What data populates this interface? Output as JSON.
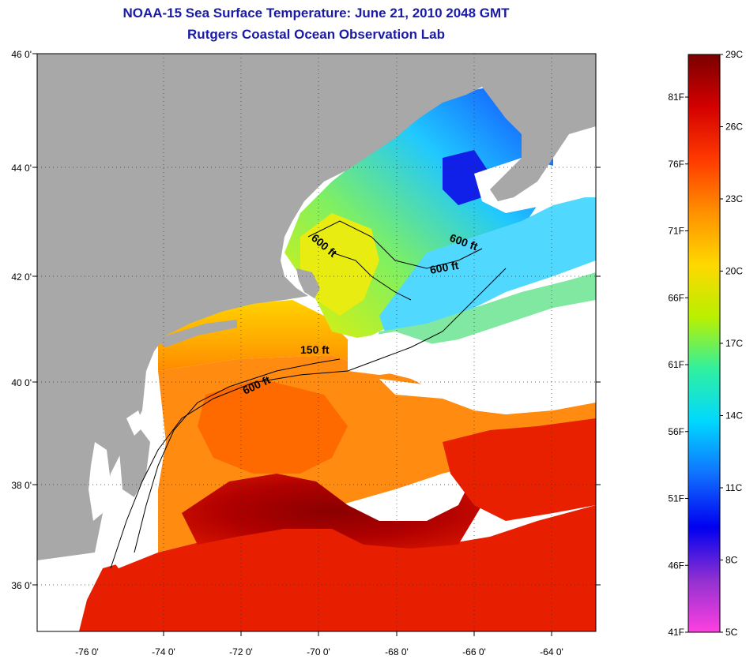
{
  "title": "NOAA-15 Sea Surface Temperature:  June 21, 2010 2048 GMT",
  "subtitle": "Rutgers Coastal Ocean Observation Lab",
  "axes": {
    "lat_labels": [
      "46 0'",
      "44 0'",
      "42 0'",
      "40 0'",
      "38 0'",
      "36 0'"
    ],
    "lon_labels": [
      "-76 0'",
      "-74 0'",
      "-72 0'",
      "-70 0'",
      "-68 0'",
      "-66 0'",
      "-64 0'"
    ]
  },
  "contours": [
    {
      "label": "600 ft",
      "depth_ft": 600
    },
    {
      "label": "600 ft",
      "depth_ft": 600
    },
    {
      "label": "600 ft",
      "depth_ft": 600
    },
    {
      "label": "150 ft",
      "depth_ft": 150
    },
    {
      "label": "600 ft",
      "depth_ft": 600
    }
  ],
  "colorbar": {
    "celsius_labels": [
      "29C",
      "26C",
      "23C",
      "20C",
      "17C",
      "14C",
      "11C",
      "8C",
      "5C"
    ],
    "fahrenheit_labels": [
      "81F",
      "76F",
      "71F",
      "66F",
      "61F",
      "56F",
      "51F",
      "46F",
      "41F"
    ],
    "colors": [
      "#7a0000",
      "#d40000",
      "#ff3a00",
      "#ff9000",
      "#ffd800",
      "#b8f000",
      "#30f0a0",
      "#00d8ff",
      "#1070ff",
      "#0000f0",
      "#9030d0",
      "#ff40e0"
    ]
  },
  "colors": {
    "land": "#a8a8a8",
    "no_data": "#ffffff",
    "title": "#1a1aa6"
  }
}
